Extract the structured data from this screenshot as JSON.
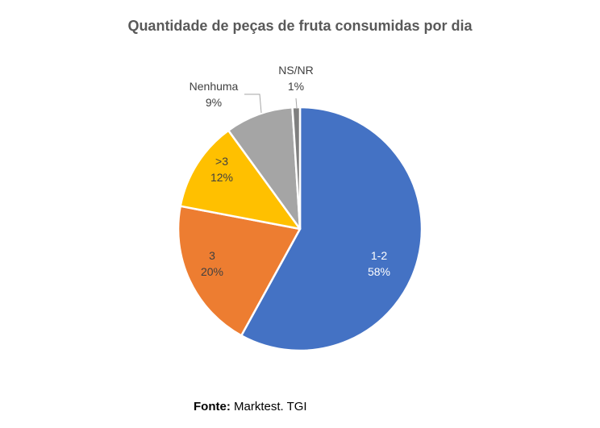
{
  "chart_data": {
    "type": "pie",
    "title": "Quantidade de peças de fruta consumidas por dia",
    "slices": [
      {
        "label": "1-2",
        "value": 58,
        "value_label": "58%",
        "color": "#4472C4",
        "label_color": "#ffffff"
      },
      {
        "label": "3",
        "value": 20,
        "value_label": "20%",
        "color": "#ED7D31",
        "label_color": "#404040"
      },
      {
        "label": ">3",
        "value": 12,
        "value_label": "12%",
        "color": "#FFC000",
        "label_color": "#404040"
      },
      {
        "label": "Nenhuma",
        "value": 9,
        "value_label": "9%",
        "color": "#A5A5A5",
        "label_color": "#404040"
      },
      {
        "label": "NS/NR",
        "value": 1,
        "value_label": "1%",
        "color": "#7F7F7F",
        "label_color": "#404040"
      }
    ],
    "legend": "none"
  },
  "source": {
    "label": "Fonte:",
    "text": "Marktest. TGI"
  }
}
